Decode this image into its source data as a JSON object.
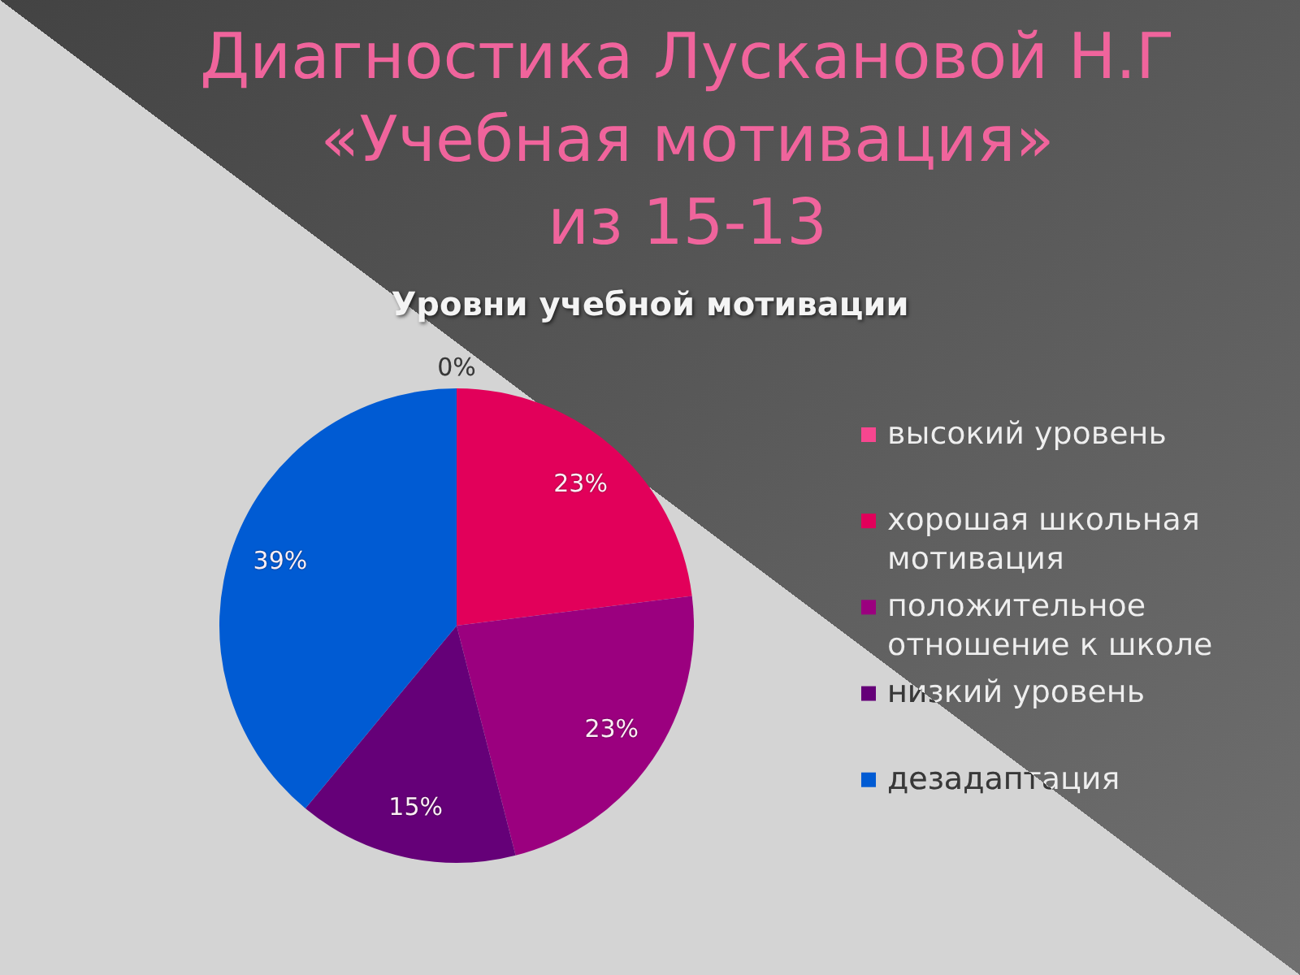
{
  "chart_data": {
    "type": "pie",
    "title": "Диагностика Лускановой Н.Г\n«Учебная мотивация»\nиз 15-13",
    "subtitle": "Уровни учебной мотивации",
    "categories": [
      "высокий уровень",
      "хорошая школьная мотивация",
      "положительное отношение к школе",
      "низкий уровень",
      "дезадаптация"
    ],
    "values": [
      0,
      23,
      23,
      15,
      39
    ],
    "colors": [
      "#f7468f",
      "#e2005a",
      "#9b007f",
      "#650078",
      "#005bd3"
    ],
    "value_labels": [
      "0%",
      "23%",
      "23%",
      "15%",
      "39%"
    ],
    "legend": "right"
  }
}
